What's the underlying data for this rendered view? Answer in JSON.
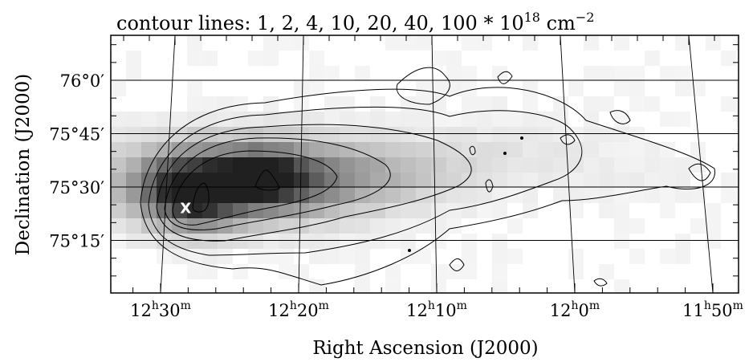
{
  "chart_data": {
    "type": "heatmap",
    "title": "contour lines: 1, 2, 4, 10, 20, 40, 100 * 10",
    "title_exponent": "18",
    "title_unit": "cm",
    "title_unit_exponent": "−2",
    "contour_levels": [
      1,
      2,
      4,
      10,
      20,
      40,
      100
    ],
    "contour_scale": 1e+18,
    "contour_unit": "cm^-2",
    "xlabel": "Right Ascension (J2000)",
    "ylabel": "Declination (J2000)",
    "x_ticks": [
      {
        "h": "12",
        "m": "30",
        "value_min": 750
      },
      {
        "h": "12",
        "m": "20",
        "value_min": 740
      },
      {
        "h": "12",
        "m": "10",
        "value_min": 730
      },
      {
        "h": "12",
        "m": "0",
        "value_min": 720
      },
      {
        "h": "11",
        "m": "50",
        "value_min": 710
      }
    ],
    "y_ticks": [
      {
        "label": "76°0′",
        "value_deg": 76.0
      },
      {
        "label": "75°45′",
        "value_deg": 75.75
      },
      {
        "label": "75°30′",
        "value_deg": 75.5
      },
      {
        "label": "75°15′",
        "value_deg": 75.25
      }
    ],
    "marker": {
      "label": "X",
      "ra_min": 749.5,
      "dec_deg": 75.4
    },
    "colormap": "gray_inverted",
    "grid": true
  }
}
